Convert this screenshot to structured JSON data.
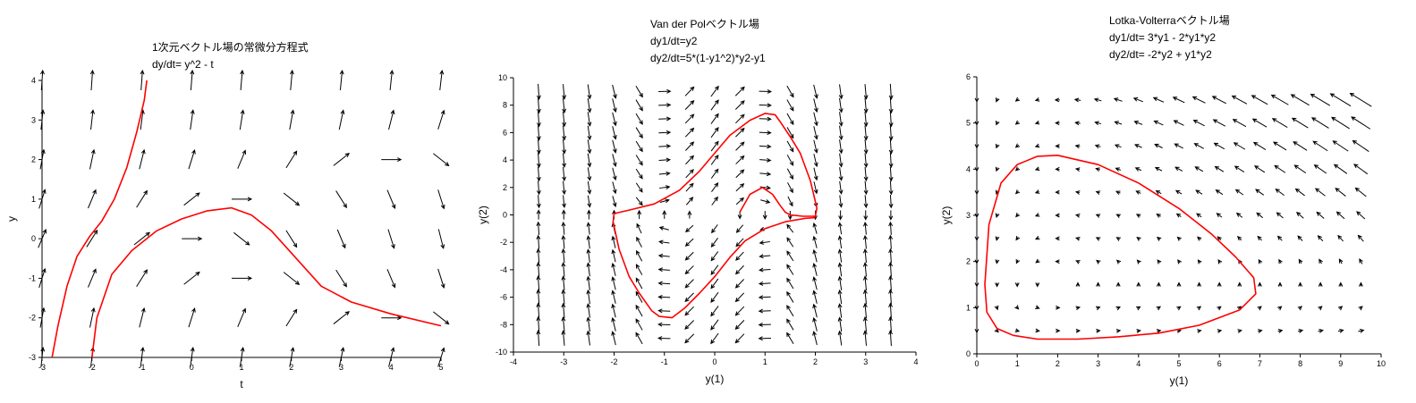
{
  "chart_data": [
    {
      "type": "quiver",
      "titles": [
        "1次元ベクトル場の常微分方程式",
        "dy/dt=  y^2 - t"
      ],
      "xlabel": "t",
      "ylabel": "y",
      "xlim": [
        -3,
        5
      ],
      "ylim": [
        -3,
        4
      ],
      "xticks": [
        "-3",
        "-2",
        "-1",
        "0",
        "1",
        "2",
        "3",
        "4",
        "5"
      ],
      "yticks": [
        "-3",
        "-2",
        "-1",
        "0",
        "1",
        "2",
        "3",
        "4"
      ],
      "grid": false,
      "vector_field": {
        "x": [
          -3,
          5,
          1
        ],
        "y": [
          -3,
          4,
          1
        ]
      },
      "series": [
        {
          "color": "#ff0000",
          "points": [
            [
              -2.8,
              -3
            ],
            [
              -2.68,
              -2.2
            ],
            [
              -2.5,
              -1.2
            ],
            [
              -2.3,
              -0.45
            ],
            [
              -2.05,
              0.05
            ],
            [
              -1.8,
              0.45
            ],
            [
              -1.55,
              1.0
            ],
            [
              -1.3,
              1.8
            ],
            [
              -1.1,
              2.7
            ],
            [
              -0.95,
              3.5
            ],
            [
              -0.9,
              4.0
            ]
          ]
        },
        {
          "color": "#ff0000",
          "points": [
            [
              -2.0,
              -3
            ],
            [
              -1.9,
              -2.0
            ],
            [
              -1.6,
              -0.9
            ],
            [
              -1.2,
              -0.3
            ],
            [
              -0.7,
              0.2
            ],
            [
              -0.2,
              0.5
            ],
            [
              0.3,
              0.7
            ],
            [
              0.8,
              0.78
            ],
            [
              1.2,
              0.6
            ],
            [
              1.6,
              0.2
            ],
            [
              2.1,
              -0.5
            ],
            [
              2.6,
              -1.2
            ],
            [
              3.2,
              -1.6
            ],
            [
              4.0,
              -1.9
            ],
            [
              5.0,
              -2.2
            ]
          ]
        }
      ]
    },
    {
      "type": "quiver",
      "titles": [
        "Van der Polベクトル場",
        "dy1/dt=y2",
        "dy2/dt=5*(1-y1^2)*y2-y1"
      ],
      "xlabel": "y(1)",
      "ylabel": "y(2)",
      "xlim": [
        -4,
        4
      ],
      "ylim": [
        -10,
        10
      ],
      "xticks": [
        "-4",
        "-3",
        "-2",
        "-1",
        "0",
        "1",
        "2",
        "3",
        "4"
      ],
      "yticks": [
        "-10",
        "-8",
        "-6",
        "-4",
        "-2",
        "0",
        "2",
        "4",
        "6",
        "8",
        "10"
      ],
      "grid": false,
      "vector_field": {
        "x": [
          -3.5,
          3.5,
          0.5
        ],
        "y": [
          -9,
          9,
          1
        ]
      },
      "series": [
        {
          "color": "#ff0000",
          "points": [
            [
              0.5,
              0.2
            ],
            [
              0.7,
              1.5
            ],
            [
              0.95,
              2.0
            ],
            [
              1.15,
              1.5
            ],
            [
              1.3,
              0.7
            ],
            [
              1.4,
              0.2
            ],
            [
              1.5,
              0.0
            ],
            [
              1.75,
              -0.1
            ],
            [
              2.0,
              -0.1
            ],
            [
              2.03,
              0.5
            ],
            [
              1.9,
              2.5
            ],
            [
              1.7,
              4.5
            ],
            [
              1.5,
              5.7
            ],
            [
              1.3,
              6.8
            ],
            [
              1.2,
              7.3
            ],
            [
              1.0,
              7.4
            ],
            [
              0.7,
              6.9
            ],
            [
              0.3,
              5.8
            ],
            [
              0.0,
              4.5
            ],
            [
              -0.3,
              3.2
            ],
            [
              -0.7,
              1.8
            ],
            [
              -1.2,
              0.8
            ],
            [
              -1.7,
              0.35
            ],
            [
              -2.0,
              0.1
            ],
            [
              -2.02,
              -0.5
            ],
            [
              -1.9,
              -2.5
            ],
            [
              -1.7,
              -4.5
            ],
            [
              -1.5,
              -5.7
            ],
            [
              -1.25,
              -7.0
            ],
            [
              -1.1,
              -7.4
            ],
            [
              -0.85,
              -7.5
            ],
            [
              -0.6,
              -6.8
            ],
            [
              -0.3,
              -5.7
            ],
            [
              0.0,
              -4.5
            ],
            [
              0.3,
              -3.1
            ],
            [
              0.6,
              -1.9
            ],
            [
              1.0,
              -1.0
            ],
            [
              1.4,
              -0.5
            ],
            [
              1.8,
              -0.25
            ],
            [
              2.0,
              -0.2
            ]
          ]
        }
      ]
    },
    {
      "type": "quiver",
      "titles": [
        "Lotka-Volterraベクトル場",
        "dy1/dt=  3*y1 - 2*y1*y2",
        "dy2/dt= -2*y2 +  y1*y2"
      ],
      "xlabel": "y(1)",
      "ylabel": "y(2)",
      "xlim": [
        0,
        10
      ],
      "ylim": [
        0,
        6
      ],
      "xticks": [
        "0",
        "1",
        "2",
        "3",
        "4",
        "5",
        "6",
        "7",
        "8",
        "9",
        "10"
      ],
      "yticks": [
        "0",
        "1",
        "2",
        "3",
        "4",
        "5",
        "6"
      ],
      "grid": false,
      "vector_field": {
        "x": [
          0,
          9.5,
          0.5
        ],
        "y": [
          0.5,
          5.5,
          0.5
        ]
      },
      "series": [
        {
          "color": "#ff0000",
          "points": [
            [
              0.2,
              1.5
            ],
            [
              0.3,
              2.8
            ],
            [
              0.6,
              3.7
            ],
            [
              1.0,
              4.1
            ],
            [
              1.5,
              4.28
            ],
            [
              2.0,
              4.3
            ],
            [
              3.0,
              4.1
            ],
            [
              4.0,
              3.7
            ],
            [
              5.0,
              3.15
            ],
            [
              5.8,
              2.6
            ],
            [
              6.4,
              2.1
            ],
            [
              6.85,
              1.65
            ],
            [
              6.9,
              1.3
            ],
            [
              6.5,
              0.95
            ],
            [
              5.5,
              0.62
            ],
            [
              4.5,
              0.45
            ],
            [
              3.5,
              0.37
            ],
            [
              2.5,
              0.32
            ],
            [
              1.5,
              0.32
            ],
            [
              0.9,
              0.4
            ],
            [
              0.5,
              0.55
            ],
            [
              0.25,
              0.9
            ],
            [
              0.2,
              1.5
            ]
          ]
        }
      ]
    }
  ]
}
